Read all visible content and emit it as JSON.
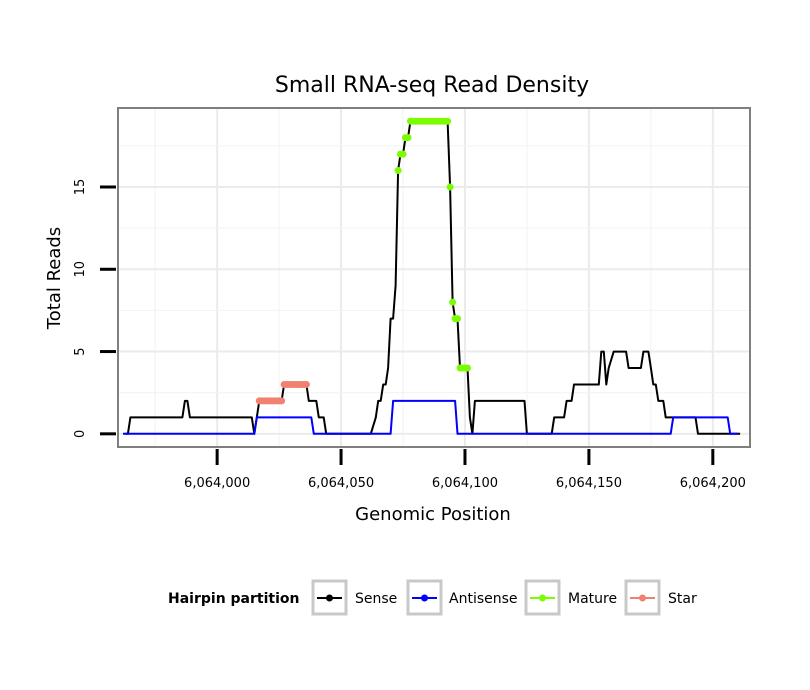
{
  "chart_data": {
    "type": "line",
    "title": "Small RNA-seq Read Density",
    "xlabel": "Genomic Position",
    "ylabel": "Total Reads",
    "xlim": [
      6063960,
      6064215
    ],
    "ylim": [
      -0.8,
      19.8
    ],
    "x_ticks": [
      6064000,
      6064050,
      6064100,
      6064150,
      6064200
    ],
    "x_tick_labels": [
      "6,064,000",
      "6,064,050",
      "6,064,100",
      "6,064,150",
      "6,064,200"
    ],
    "y_ticks": [
      0,
      5,
      10,
      15
    ],
    "y_tick_labels": [
      "0",
      "5",
      "10",
      "15"
    ],
    "grid": true,
    "legend": {
      "title": "Hairpin partition",
      "placement": "bottom",
      "entries": [
        {
          "name": "Sense",
          "color": "#000000"
        },
        {
          "name": "Antisense",
          "color": "#0000ff"
        },
        {
          "name": "Mature",
          "color": "#7cfc00"
        },
        {
          "name": "Star",
          "color": "#f08070"
        }
      ]
    },
    "series": [
      {
        "name": "Sense",
        "color": "#000000",
        "style": "line",
        "points": [
          [
            6063963,
            0
          ],
          [
            6063964,
            0
          ],
          [
            6063965,
            1
          ],
          [
            6063986,
            1
          ],
          [
            6063987,
            2
          ],
          [
            6063988,
            2
          ],
          [
            6063989,
            1
          ],
          [
            6064014,
            1
          ],
          [
            6064015,
            0
          ],
          [
            6064016,
            1
          ],
          [
            6064017,
            2
          ],
          [
            6064026,
            2
          ],
          [
            6064027,
            3
          ],
          [
            6064036,
            3
          ],
          [
            6064037,
            2
          ],
          [
            6064040,
            2
          ],
          [
            6064041,
            1
          ],
          [
            6064043,
            1
          ],
          [
            6064044,
            0
          ],
          [
            6064062,
            0
          ],
          [
            6064064,
            1
          ],
          [
            6064065,
            2
          ],
          [
            6064066,
            2
          ],
          [
            6064067,
            3
          ],
          [
            6064068,
            3
          ],
          [
            6064069,
            4
          ],
          [
            6064070,
            7
          ],
          [
            6064071,
            7
          ],
          [
            6064072,
            9
          ],
          [
            6064073,
            16
          ],
          [
            6064074,
            17
          ],
          [
            6064075,
            17
          ],
          [
            6064076,
            18
          ],
          [
            6064077,
            18
          ],
          [
            6064078,
            19
          ],
          [
            6064093,
            19
          ],
          [
            6064094,
            15
          ],
          [
            6064095,
            8
          ],
          [
            6064096,
            7
          ],
          [
            6064097,
            7
          ],
          [
            6064098,
            4
          ],
          [
            6064101,
            4
          ],
          [
            6064102,
            1
          ],
          [
            6064103,
            0
          ],
          [
            6064104,
            2
          ],
          [
            6064124,
            2
          ],
          [
            6064125,
            0
          ],
          [
            6064134,
            0
          ],
          [
            6064135,
            0
          ],
          [
            6064136,
            1
          ],
          [
            6064140,
            1
          ],
          [
            6064141,
            2
          ],
          [
            6064143,
            2
          ],
          [
            6064144,
            3
          ],
          [
            6064154,
            3
          ],
          [
            6064155,
            5
          ],
          [
            6064156,
            5
          ],
          [
            6064157,
            3
          ],
          [
            6064158,
            4
          ],
          [
            6064160,
            5
          ],
          [
            6064165,
            5
          ],
          [
            6064166,
            4
          ],
          [
            6064171,
            4
          ],
          [
            6064172,
            5
          ],
          [
            6064174,
            5
          ],
          [
            6064175,
            4
          ],
          [
            6064176,
            3
          ],
          [
            6064177,
            3
          ],
          [
            6064178,
            2
          ],
          [
            6064180,
            2
          ],
          [
            6064181,
            1
          ],
          [
            6064193,
            1
          ],
          [
            6064194,
            0
          ],
          [
            6064201,
            0
          ],
          [
            6064211,
            0
          ]
        ]
      },
      {
        "name": "Antisense",
        "color": "#0000ff",
        "style": "line",
        "points": [
          [
            6063962,
            0
          ],
          [
            6064015,
            0
          ],
          [
            6064016,
            1
          ],
          [
            6064038,
            1
          ],
          [
            6064039,
            0
          ],
          [
            6064070,
            0
          ],
          [
            6064071,
            2
          ],
          [
            6064096,
            2
          ],
          [
            6064097,
            0
          ],
          [
            6064183,
            0
          ],
          [
            6064184,
            1
          ],
          [
            6064206,
            1
          ],
          [
            6064207,
            0
          ],
          [
            6064210,
            0
          ]
        ]
      },
      {
        "name": "Mature",
        "color": "#7cfc00",
        "style": "points",
        "points": [
          [
            6064073,
            16
          ],
          [
            6064074,
            17
          ],
          [
            6064075,
            17
          ],
          [
            6064076,
            18
          ],
          [
            6064077,
            18
          ],
          [
            6064078,
            19
          ],
          [
            6064079,
            19
          ],
          [
            6064080,
            19
          ],
          [
            6064081,
            19
          ],
          [
            6064082,
            19
          ],
          [
            6064083,
            19
          ],
          [
            6064084,
            19
          ],
          [
            6064085,
            19
          ],
          [
            6064086,
            19
          ],
          [
            6064087,
            19
          ],
          [
            6064088,
            19
          ],
          [
            6064089,
            19
          ],
          [
            6064090,
            19
          ],
          [
            6064091,
            19
          ],
          [
            6064092,
            19
          ],
          [
            6064093,
            19
          ],
          [
            6064094,
            15
          ],
          [
            6064095,
            8
          ],
          [
            6064096,
            7
          ],
          [
            6064097,
            7
          ],
          [
            6064098,
            4
          ],
          [
            6064099,
            4
          ],
          [
            6064100,
            4
          ],
          [
            6064101,
            4
          ]
        ]
      },
      {
        "name": "Star",
        "color": "#f08070",
        "style": "points",
        "points": [
          [
            6064017,
            2
          ],
          [
            6064018,
            2
          ],
          [
            6064019,
            2
          ],
          [
            6064020,
            2
          ],
          [
            6064021,
            2
          ],
          [
            6064022,
            2
          ],
          [
            6064023,
            2
          ],
          [
            6064024,
            2
          ],
          [
            6064025,
            2
          ],
          [
            6064026,
            2
          ],
          [
            6064027,
            3
          ],
          [
            6064028,
            3
          ],
          [
            6064029,
            3
          ],
          [
            6064030,
            3
          ],
          [
            6064031,
            3
          ],
          [
            6064032,
            3
          ],
          [
            6064033,
            3
          ],
          [
            6064034,
            3
          ],
          [
            6064035,
            3
          ],
          [
            6064036,
            3
          ]
        ]
      }
    ]
  }
}
